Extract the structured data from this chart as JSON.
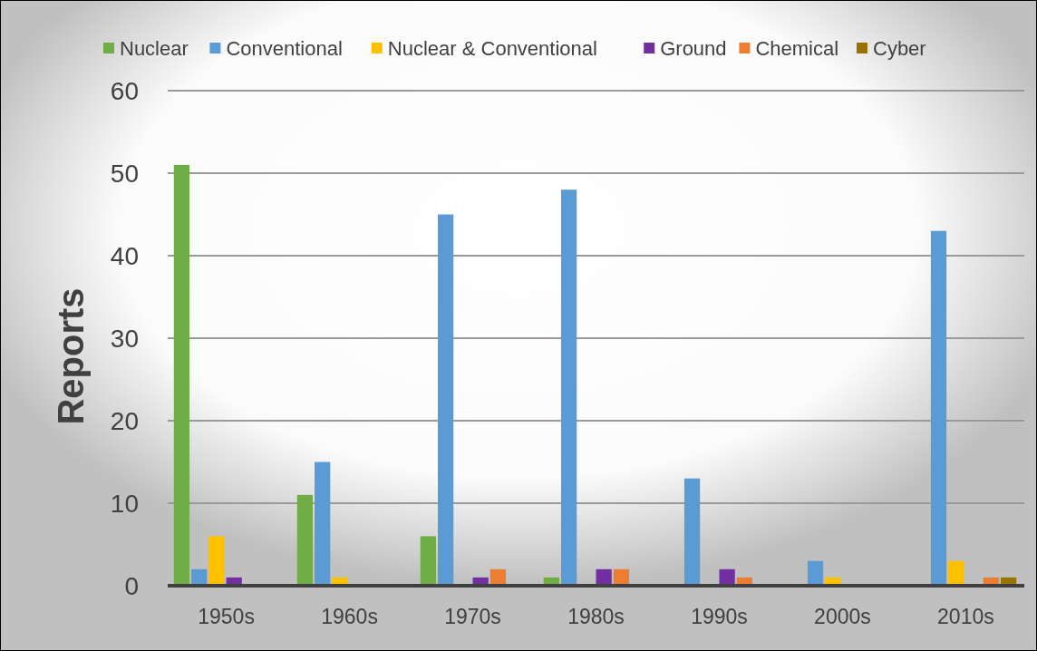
{
  "chart_data": {
    "type": "bar",
    "ylabel": "Reports",
    "categories": [
      "1950s",
      "1960s",
      "1970s",
      "1980s",
      "1990s",
      "2000s",
      "2010s"
    ],
    "series": [
      {
        "name": "Nuclear",
        "color": "#70ad47",
        "values": [
          51,
          11,
          6,
          1,
          0,
          0,
          0
        ]
      },
      {
        "name": "Conventional",
        "color": "#5b9bd5",
        "values": [
          2,
          15,
          45,
          48,
          13,
          3,
          43
        ]
      },
      {
        "name": "Nuclear & Conventional",
        "color": "#ffc000",
        "values": [
          6,
          1,
          0,
          0,
          0,
          1,
          3
        ]
      },
      {
        "name": "Ground",
        "color": "#7030a0",
        "values": [
          1,
          0,
          1,
          2,
          2,
          0,
          0
        ]
      },
      {
        "name": "Chemical",
        "color": "#ed7d31",
        "values": [
          0,
          0,
          2,
          2,
          1,
          0,
          1
        ]
      },
      {
        "name": "Cyber",
        "color": "#997300",
        "values": [
          0,
          0,
          0,
          0,
          0,
          0,
          1
        ]
      }
    ],
    "ylim": [
      0,
      60
    ],
    "yticks": [
      0,
      10,
      20,
      30,
      40,
      50,
      60
    ],
    "grid": "y",
    "legend": "top"
  }
}
